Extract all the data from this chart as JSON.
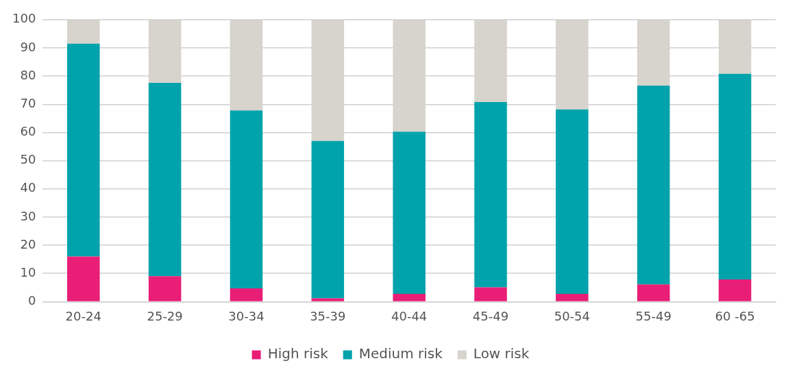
{
  "chart_data": {
    "type": "bar",
    "stacked": true,
    "categories": [
      "20-24",
      "25-29",
      "30-34",
      "35-39",
      "40-44",
      "45-49",
      "50-54",
      "55-49",
      "60 -65"
    ],
    "series": [
      {
        "name": "High risk",
        "color": "#e91e76",
        "values": [
          16,
          9,
          4.7,
          1.2,
          2.8,
          5.1,
          2.8,
          6.1,
          7.9
        ]
      },
      {
        "name": "Medium risk",
        "color": "#00a3ab",
        "values": [
          75.5,
          68.6,
          63.1,
          55.8,
          57.5,
          65.7,
          65.4,
          70.5,
          72.9
        ]
      },
      {
        "name": "Low risk",
        "color": "#d7d3cd",
        "values": [
          8.5,
          22.4,
          32.2,
          43,
          39.7,
          29.2,
          31.8,
          23.4,
          19.2
        ]
      }
    ],
    "ylim": [
      0,
      100
    ],
    "yticks": [
      0,
      10,
      20,
      30,
      40,
      50,
      60,
      70,
      80,
      90,
      100
    ],
    "grid": "y",
    "legend": "bottom"
  }
}
